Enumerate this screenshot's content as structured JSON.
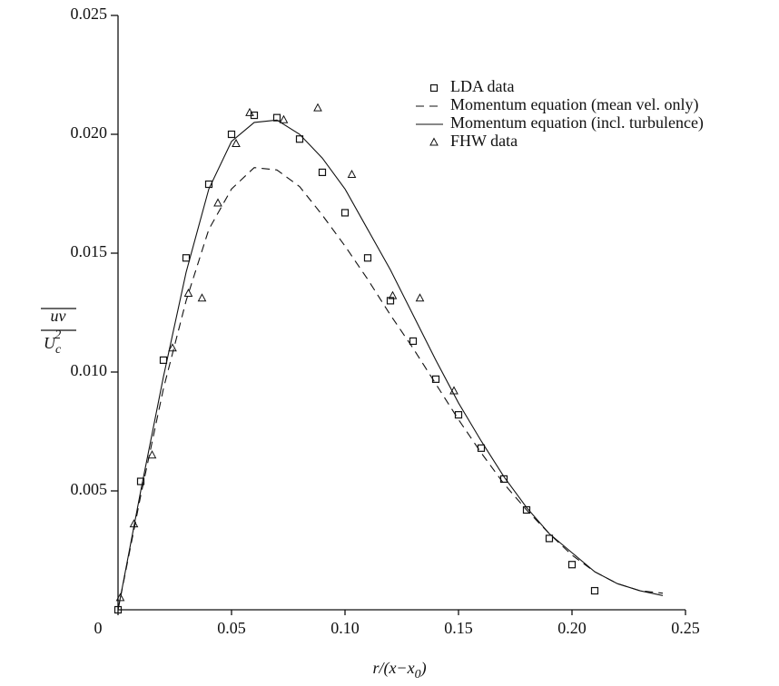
{
  "chart_data": {
    "type": "scatter_line",
    "x_label": {
      "main": "r/(x−x",
      "subscript": "0",
      "end": ")"
    },
    "y_label": {
      "numerator": "uv",
      "denominator": "U",
      "subscript": "c",
      "superscript": "2"
    },
    "xlim": [
      0,
      0.25
    ],
    "ylim": [
      0,
      0.025
    ],
    "xticks": [
      0,
      0.05,
      {
        "value": 0.1,
        "label": "0.10"
      },
      0.15,
      {
        "value": 0.2,
        "label": "0.20"
      },
      0.25
    ],
    "yticks": [
      0.005,
      {
        "value": 0.01,
        "label": "0.010"
      },
      0.015,
      {
        "value": 0.02,
        "label": "0.020"
      },
      0.025
    ],
    "legend": "upper right",
    "series": [
      {
        "name": "LDA data",
        "style": "square",
        "color": "#111111",
        "x": [
          0,
          0.01,
          0.02,
          0.03,
          0.04,
          0.05,
          0.06,
          0.07,
          0.08,
          0.09,
          0.1,
          0.11,
          0.12,
          0.13,
          0.14,
          0.15,
          0.16,
          0.17,
          0.18,
          0.19,
          0.2,
          0.21
        ],
        "values": [
          0,
          0.0054,
          0.0105,
          0.0148,
          0.0179,
          0.02,
          0.0208,
          0.0207,
          0.0198,
          0.0184,
          0.0167,
          0.0148,
          0.013,
          0.0113,
          0.0097,
          0.0082,
          0.0068,
          0.0055,
          0.0042,
          0.003,
          0.0019,
          0.0008
        ]
      },
      {
        "name": "Momentum equation (mean vel. only)",
        "style": "dashed",
        "color": "#111111",
        "x": [
          0,
          0.01,
          0.02,
          0.03,
          0.04,
          0.05,
          0.06,
          0.07,
          0.08,
          0.09,
          0.1,
          0.11,
          0.12,
          0.13,
          0.14,
          0.15,
          0.16,
          0.17,
          0.18,
          0.19,
          0.2,
          0.21,
          0.22,
          0.23,
          0.24
        ],
        "values": [
          0,
          0.0048,
          0.0093,
          0.013,
          0.016,
          0.0177,
          0.0186,
          0.0185,
          0.0178,
          0.0166,
          0.0153,
          0.0139,
          0.0124,
          0.011,
          0.0095,
          0.008,
          0.0066,
          0.0053,
          0.0042,
          0.0032,
          0.0023,
          0.0016,
          0.0011,
          0.0008,
          0.0007
        ]
      },
      {
        "name": "Momentum equation (incl. turbulence)",
        "style": "solid",
        "color": "#111111",
        "x": [
          0,
          0.01,
          0.02,
          0.03,
          0.04,
          0.05,
          0.06,
          0.07,
          0.08,
          0.09,
          0.1,
          0.11,
          0.12,
          0.13,
          0.14,
          0.15,
          0.16,
          0.17,
          0.18,
          0.19,
          0.2,
          0.21,
          0.22,
          0.23,
          0.24
        ],
        "values": [
          0,
          0.005,
          0.0098,
          0.0142,
          0.0177,
          0.0197,
          0.0205,
          0.0206,
          0.02,
          0.019,
          0.0177,
          0.016,
          0.0143,
          0.0124,
          0.0105,
          0.0087,
          0.0071,
          0.0056,
          0.0043,
          0.0032,
          0.0024,
          0.0016,
          0.0011,
          0.0008,
          0.0006
        ]
      },
      {
        "name": "FHW data",
        "style": "triangle",
        "color": "#111111",
        "x": [
          0.001,
          0.007,
          0.015,
          0.024,
          0.031,
          0.037,
          0.044,
          0.052,
          0.058,
          0.073,
          0.088,
          0.103,
          0.121,
          0.133,
          0.148
        ],
        "values": [
          0.0005,
          0.0036,
          0.0065,
          0.011,
          0.0133,
          0.0131,
          0.0171,
          0.0196,
          0.0209,
          0.0206,
          0.0211,
          0.0183,
          0.0132,
          0.0131,
          0.0092
        ]
      }
    ]
  }
}
